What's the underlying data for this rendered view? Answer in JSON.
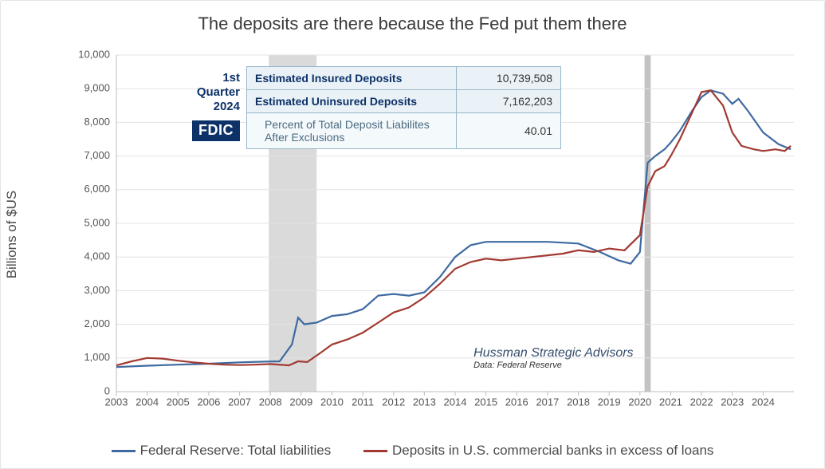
{
  "title": "The deposits are there because the Fed put them there",
  "ylabel": "Billions of $US",
  "chart": {
    "type": "line",
    "x_domain": [
      2003,
      2025
    ],
    "ylim": [
      0,
      10000
    ],
    "ytick_step": 1000,
    "y_ticks": [
      0,
      1000,
      2000,
      3000,
      4000,
      5000,
      6000,
      7000,
      8000,
      9000,
      10000
    ],
    "y_tick_labels": [
      "0",
      "1,000",
      "2,000",
      "3,000",
      "4,000",
      "5,000",
      "6,000",
      "7,000",
      "8,000",
      "9,000",
      "10,000"
    ],
    "x_ticks": [
      2003,
      2004,
      2005,
      2006,
      2007,
      2008,
      2009,
      2010,
      2011,
      2012,
      2013,
      2014,
      2015,
      2016,
      2017,
      2018,
      2019,
      2020,
      2021,
      2022,
      2023,
      2024
    ],
    "grid_color": "#e3e3e3",
    "axis_color": "#bdbdbd",
    "background_color": "#ffffff",
    "recession_band": {
      "start": 2007.95,
      "end": 2009.5,
      "color": "#d4d4d4"
    },
    "covid_marker": {
      "start": 2020.15,
      "end": 2020.35,
      "color": "#bdbdbd"
    },
    "series": [
      {
        "name": "fed_liabilities",
        "label": "Federal Reserve: Total liabilities",
        "color": "#3e6aa1",
        "line_width": 2.2,
        "points": [
          [
            2003.0,
            730
          ],
          [
            2004.0,
            770
          ],
          [
            2005.0,
            800
          ],
          [
            2006.0,
            830
          ],
          [
            2007.0,
            870
          ],
          [
            2007.8,
            890
          ],
          [
            2008.3,
            900
          ],
          [
            2008.7,
            1400
          ],
          [
            2008.9,
            2200
          ],
          [
            2009.1,
            2000
          ],
          [
            2009.5,
            2050
          ],
          [
            2010.0,
            2250
          ],
          [
            2010.5,
            2300
          ],
          [
            2011.0,
            2450
          ],
          [
            2011.5,
            2850
          ],
          [
            2012.0,
            2900
          ],
          [
            2012.5,
            2850
          ],
          [
            2013.0,
            2950
          ],
          [
            2013.5,
            3400
          ],
          [
            2014.0,
            4000
          ],
          [
            2014.5,
            4350
          ],
          [
            2015.0,
            4450
          ],
          [
            2016.0,
            4450
          ],
          [
            2017.0,
            4450
          ],
          [
            2018.0,
            4400
          ],
          [
            2018.7,
            4150
          ],
          [
            2019.3,
            3900
          ],
          [
            2019.7,
            3800
          ],
          [
            2020.0,
            4150
          ],
          [
            2020.25,
            6800
          ],
          [
            2020.5,
            7000
          ],
          [
            2020.8,
            7200
          ],
          [
            2021.0,
            7400
          ],
          [
            2021.3,
            7750
          ],
          [
            2021.7,
            8350
          ],
          [
            2022.0,
            8750
          ],
          [
            2022.3,
            8950
          ],
          [
            2022.7,
            8850
          ],
          [
            2023.0,
            8550
          ],
          [
            2023.2,
            8700
          ],
          [
            2023.5,
            8350
          ],
          [
            2024.0,
            7700
          ],
          [
            2024.5,
            7350
          ],
          [
            2024.9,
            7200
          ]
        ]
      },
      {
        "name": "deposits_excess",
        "label": "Deposits in U.S. commercial banks in excess of loans",
        "color": "#a23a32",
        "line_width": 2.2,
        "points": [
          [
            2003.0,
            780
          ],
          [
            2003.5,
            900
          ],
          [
            2004.0,
            1000
          ],
          [
            2004.5,
            980
          ],
          [
            2005.0,
            920
          ],
          [
            2005.5,
            870
          ],
          [
            2006.0,
            830
          ],
          [
            2006.5,
            800
          ],
          [
            2007.0,
            790
          ],
          [
            2007.5,
            800
          ],
          [
            2008.0,
            820
          ],
          [
            2008.6,
            780
          ],
          [
            2008.9,
            900
          ],
          [
            2009.2,
            880
          ],
          [
            2009.7,
            1200
          ],
          [
            2010.0,
            1400
          ],
          [
            2010.5,
            1550
          ],
          [
            2011.0,
            1750
          ],
          [
            2011.5,
            2050
          ],
          [
            2012.0,
            2350
          ],
          [
            2012.5,
            2500
          ],
          [
            2013.0,
            2800
          ],
          [
            2013.5,
            3200
          ],
          [
            2014.0,
            3650
          ],
          [
            2014.5,
            3850
          ],
          [
            2015.0,
            3950
          ],
          [
            2015.5,
            3900
          ],
          [
            2016.0,
            3950
          ],
          [
            2016.5,
            4000
          ],
          [
            2017.0,
            4050
          ],
          [
            2017.5,
            4100
          ],
          [
            2018.0,
            4200
          ],
          [
            2018.5,
            4150
          ],
          [
            2019.0,
            4250
          ],
          [
            2019.5,
            4200
          ],
          [
            2020.0,
            4650
          ],
          [
            2020.25,
            6100
          ],
          [
            2020.5,
            6550
          ],
          [
            2020.8,
            6700
          ],
          [
            2021.0,
            7000
          ],
          [
            2021.3,
            7500
          ],
          [
            2021.7,
            8300
          ],
          [
            2022.0,
            8900
          ],
          [
            2022.3,
            8950
          ],
          [
            2022.7,
            8500
          ],
          [
            2023.0,
            7700
          ],
          [
            2023.3,
            7300
          ],
          [
            2023.7,
            7200
          ],
          [
            2024.0,
            7150
          ],
          [
            2024.4,
            7200
          ],
          [
            2024.7,
            7150
          ],
          [
            2024.9,
            7300
          ]
        ]
      }
    ]
  },
  "inset": {
    "period_label_line1": "1st",
    "period_label_line2": "Quarter",
    "period_label_line3": "2024",
    "fdic_badge": "FDIC",
    "rows": [
      {
        "label": "Estimated Insured Deposits",
        "value": "10,739,508"
      },
      {
        "label": "Estimated Uninsured Deposits",
        "value": "7,162,203"
      },
      {
        "label": "Percent of Total Deposit Liabilites After Exclusions",
        "value": "40.01"
      }
    ]
  },
  "attribution": {
    "title": "Hussman Strategic Advisors",
    "subtitle": "Data: Federal Reserve"
  },
  "legend": {
    "items": [
      {
        "color": "#3e6aa1",
        "label": "Federal Reserve: Total liabilities"
      },
      {
        "color": "#a23a32",
        "label": "Deposits in U.S. commercial banks in excess of loans"
      }
    ]
  }
}
